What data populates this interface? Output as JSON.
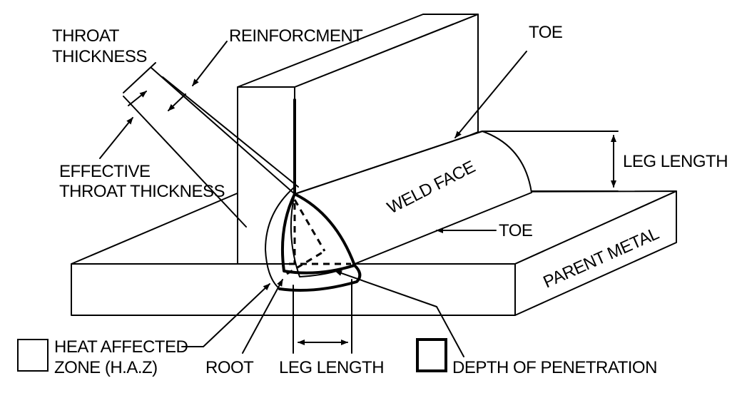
{
  "labels": {
    "throat_thickness_line1": "THROAT",
    "throat_thickness_line2": "THICKNESS",
    "reinforcement": "REINFORCMENT",
    "toe_top": "TOE",
    "leg_length_right": "LEG LENGTH",
    "effective_throat_line1": "EFFECTIVE",
    "effective_throat_line2": "THROAT THICKNESS",
    "weld_face": "WELD FACE",
    "toe_middle": "TOE",
    "parent_metal": "PARENT METAL",
    "root": "ROOT",
    "leg_length_bottom": "LEG LENGTH",
    "depth_of_penetration": "DEPTH OF PENETRATION"
  },
  "legend": {
    "haz_line1": "HEAT  AFFECTED",
    "haz_line2": "ZONE (H.A.Z)"
  },
  "colors": {
    "ink": "#000000",
    "paper": "#ffffff"
  }
}
